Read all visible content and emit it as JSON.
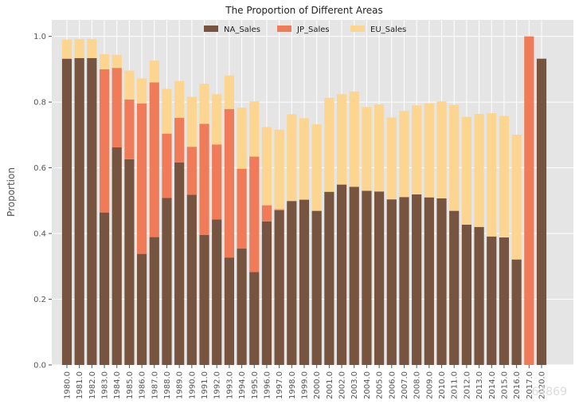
{
  "watermark": "64869",
  "chart_data": {
    "type": "bar",
    "stacked": true,
    "title": "The Proportion of Different Areas",
    "xlabel": "",
    "ylabel": "Proportion",
    "ylim": [
      0,
      1.05
    ],
    "yticks": [
      "0.0",
      "0.2",
      "0.4",
      "0.6",
      "0.8",
      "1.0"
    ],
    "grid": true,
    "legend_position": "top-center",
    "categories": [
      "1980.0",
      "1981.0",
      "1982.0",
      "1983.0",
      "1984.0",
      "1985.0",
      "1986.0",
      "1987.0",
      "1988.0",
      "1989.0",
      "1990.0",
      "1991.0",
      "1992.0",
      "1993.0",
      "1994.0",
      "1995.0",
      "1996.0",
      "1997.0",
      "1998.0",
      "1999.0",
      "2000.0",
      "2001.0",
      "2002.0",
      "2003.0",
      "2004.0",
      "2005.0",
      "2006.0",
      "2007.0",
      "2008.0",
      "2009.0",
      "2010.0",
      "2011.0",
      "2012.0",
      "2013.0",
      "2014.0",
      "2015.0",
      "2016.0",
      "2017.0",
      "2020.0"
    ],
    "series": [
      {
        "name": "NA_Sales",
        "color": "#77543f",
        "values": [
          0.932,
          0.934,
          0.934,
          0.464,
          0.662,
          0.626,
          0.338,
          0.389,
          0.508,
          0.616,
          0.518,
          0.396,
          0.443,
          0.327,
          0.354,
          0.283,
          0.437,
          0.471,
          0.499,
          0.503,
          0.469,
          0.527,
          0.549,
          0.542,
          0.53,
          0.528,
          0.504,
          0.511,
          0.519,
          0.51,
          0.507,
          0.469,
          0.427,
          0.42,
          0.391,
          0.388,
          0.321,
          0.0,
          0.932
        ]
      },
      {
        "name": "JP_Sales",
        "color": "#ef7b58",
        "values": [
          0.0,
          0.0,
          0.0,
          0.436,
          0.242,
          0.182,
          0.458,
          0.471,
          0.196,
          0.136,
          0.146,
          0.338,
          0.228,
          0.452,
          0.243,
          0.351,
          0.049,
          0.003,
          0.0,
          0.0,
          0.0,
          0.0,
          0.0,
          0.0,
          0.0,
          0.0,
          0.0,
          0.0,
          0.0,
          0.0,
          0.0,
          0.0,
          0.0,
          0.0,
          0.0,
          0.0,
          0.0,
          1.0,
          0.0
        ]
      },
      {
        "name": "EU_Sales",
        "color": "#fcd591",
        "values": [
          0.058,
          0.058,
          0.058,
          0.046,
          0.04,
          0.088,
          0.076,
          0.066,
          0.136,
          0.112,
          0.152,
          0.122,
          0.153,
          0.102,
          0.186,
          0.168,
          0.238,
          0.242,
          0.264,
          0.248,
          0.263,
          0.286,
          0.275,
          0.29,
          0.255,
          0.265,
          0.249,
          0.262,
          0.271,
          0.286,
          0.295,
          0.323,
          0.328,
          0.344,
          0.375,
          0.37,
          0.38,
          0.0,
          0.0
        ]
      }
    ]
  }
}
